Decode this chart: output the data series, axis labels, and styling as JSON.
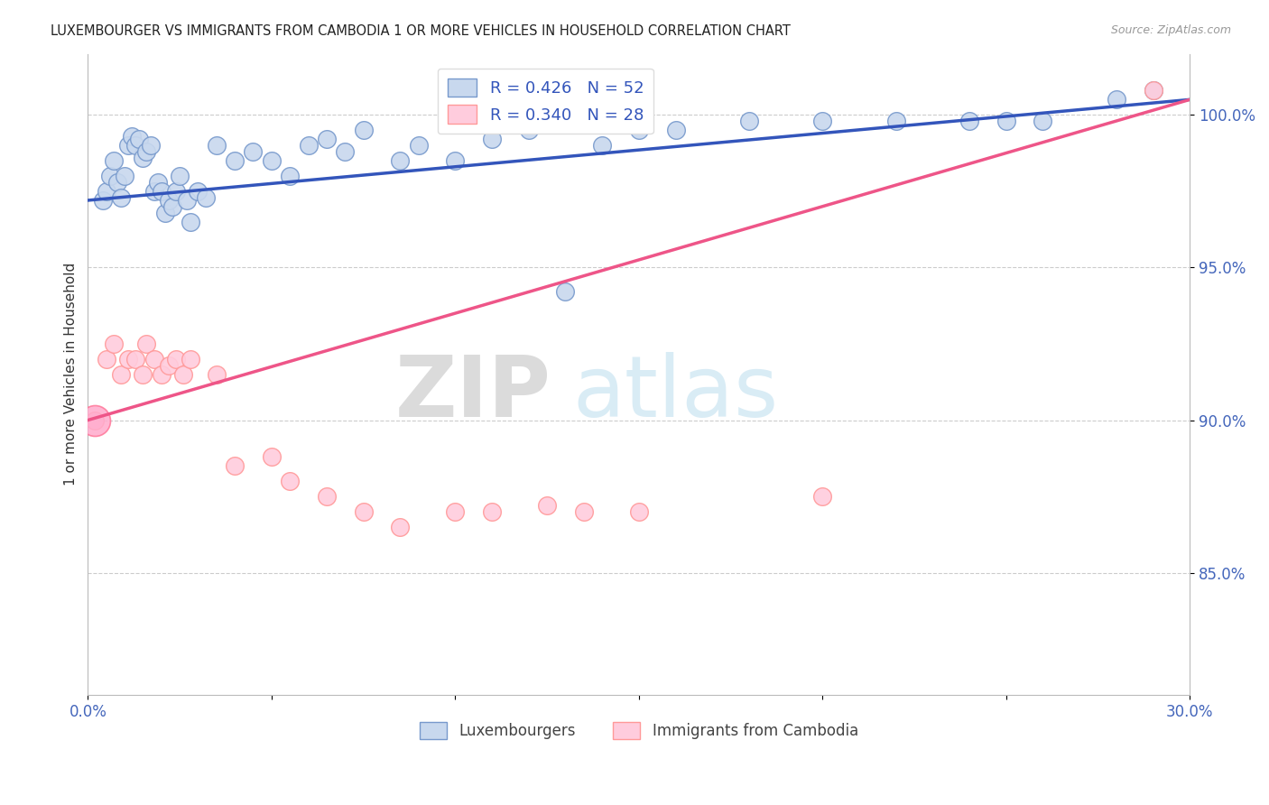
{
  "title": "LUXEMBOURGER VS IMMIGRANTS FROM CAMBODIA 1 OR MORE VEHICLES IN HOUSEHOLD CORRELATION CHART",
  "source": "Source: ZipAtlas.com",
  "ylabel": "1 or more Vehicles in Household",
  "x_min": 0.0,
  "x_max": 30.0,
  "y_min": 81.0,
  "y_max": 102.0,
  "x_ticks": [
    0.0,
    5.0,
    10.0,
    15.0,
    20.0,
    25.0,
    30.0
  ],
  "x_tick_labels": [
    "0.0%",
    "",
    "",
    "",
    "",
    "",
    "30.0%"
  ],
  "y_ticks": [
    85.0,
    90.0,
    95.0,
    100.0
  ],
  "y_tick_labels": [
    "85.0%",
    "90.0%",
    "95.0%",
    "100.0%"
  ],
  "legend_blue_label": "R = 0.426   N = 52",
  "legend_pink_label": "R = 0.340   N = 28",
  "legend_bottom_blue": "Luxembourgers",
  "legend_bottom_pink": "Immigrants from Cambodia",
  "watermark_zip": "ZIP",
  "watermark_atlas": "atlas",
  "blue_scatter_x": [
    0.4,
    0.5,
    0.6,
    0.7,
    0.8,
    0.9,
    1.0,
    1.1,
    1.2,
    1.3,
    1.4,
    1.5,
    1.6,
    1.7,
    1.8,
    1.9,
    2.0,
    2.1,
    2.2,
    2.3,
    2.4,
    2.5,
    2.7,
    2.8,
    3.0,
    3.2,
    3.5,
    4.0,
    4.5,
    5.0,
    5.5,
    6.0,
    6.5,
    7.0,
    7.5,
    8.5,
    9.0,
    10.0,
    11.0,
    12.0,
    13.0,
    14.0,
    15.0,
    16.0,
    18.0,
    20.0,
    22.0,
    24.0,
    25.0,
    26.0,
    28.0,
    29.0
  ],
  "blue_scatter_y": [
    97.2,
    97.5,
    98.0,
    98.5,
    97.8,
    97.3,
    98.0,
    99.0,
    99.3,
    99.0,
    99.2,
    98.6,
    98.8,
    99.0,
    97.5,
    97.8,
    97.5,
    96.8,
    97.2,
    97.0,
    97.5,
    98.0,
    97.2,
    96.5,
    97.5,
    97.3,
    99.0,
    98.5,
    98.8,
    98.5,
    98.0,
    99.0,
    99.2,
    98.8,
    99.5,
    98.5,
    99.0,
    98.5,
    99.2,
    99.5,
    94.2,
    99.0,
    99.5,
    99.5,
    99.8,
    99.8,
    99.8,
    99.8,
    99.8,
    99.8,
    100.5,
    100.8
  ],
  "pink_scatter_x": [
    0.2,
    0.5,
    0.7,
    0.9,
    1.1,
    1.3,
    1.5,
    1.6,
    1.8,
    2.0,
    2.2,
    2.4,
    2.6,
    2.8,
    3.5,
    4.0,
    5.0,
    5.5,
    6.5,
    7.5,
    8.5,
    10.0,
    11.0,
    12.5,
    13.5,
    15.0,
    20.0,
    29.0
  ],
  "pink_scatter_y": [
    90.0,
    92.0,
    92.5,
    91.5,
    92.0,
    92.0,
    91.5,
    92.5,
    92.0,
    91.5,
    91.8,
    92.0,
    91.5,
    92.0,
    91.5,
    88.5,
    88.8,
    88.0,
    87.5,
    87.0,
    86.5,
    87.0,
    87.0,
    87.2,
    87.0,
    87.0,
    87.5,
    100.8
  ],
  "blue_line_x": [
    0.0,
    30.0
  ],
  "blue_line_y": [
    97.2,
    100.5
  ],
  "pink_line_x": [
    0.0,
    30.0
  ],
  "pink_line_y": [
    90.0,
    100.5
  ]
}
